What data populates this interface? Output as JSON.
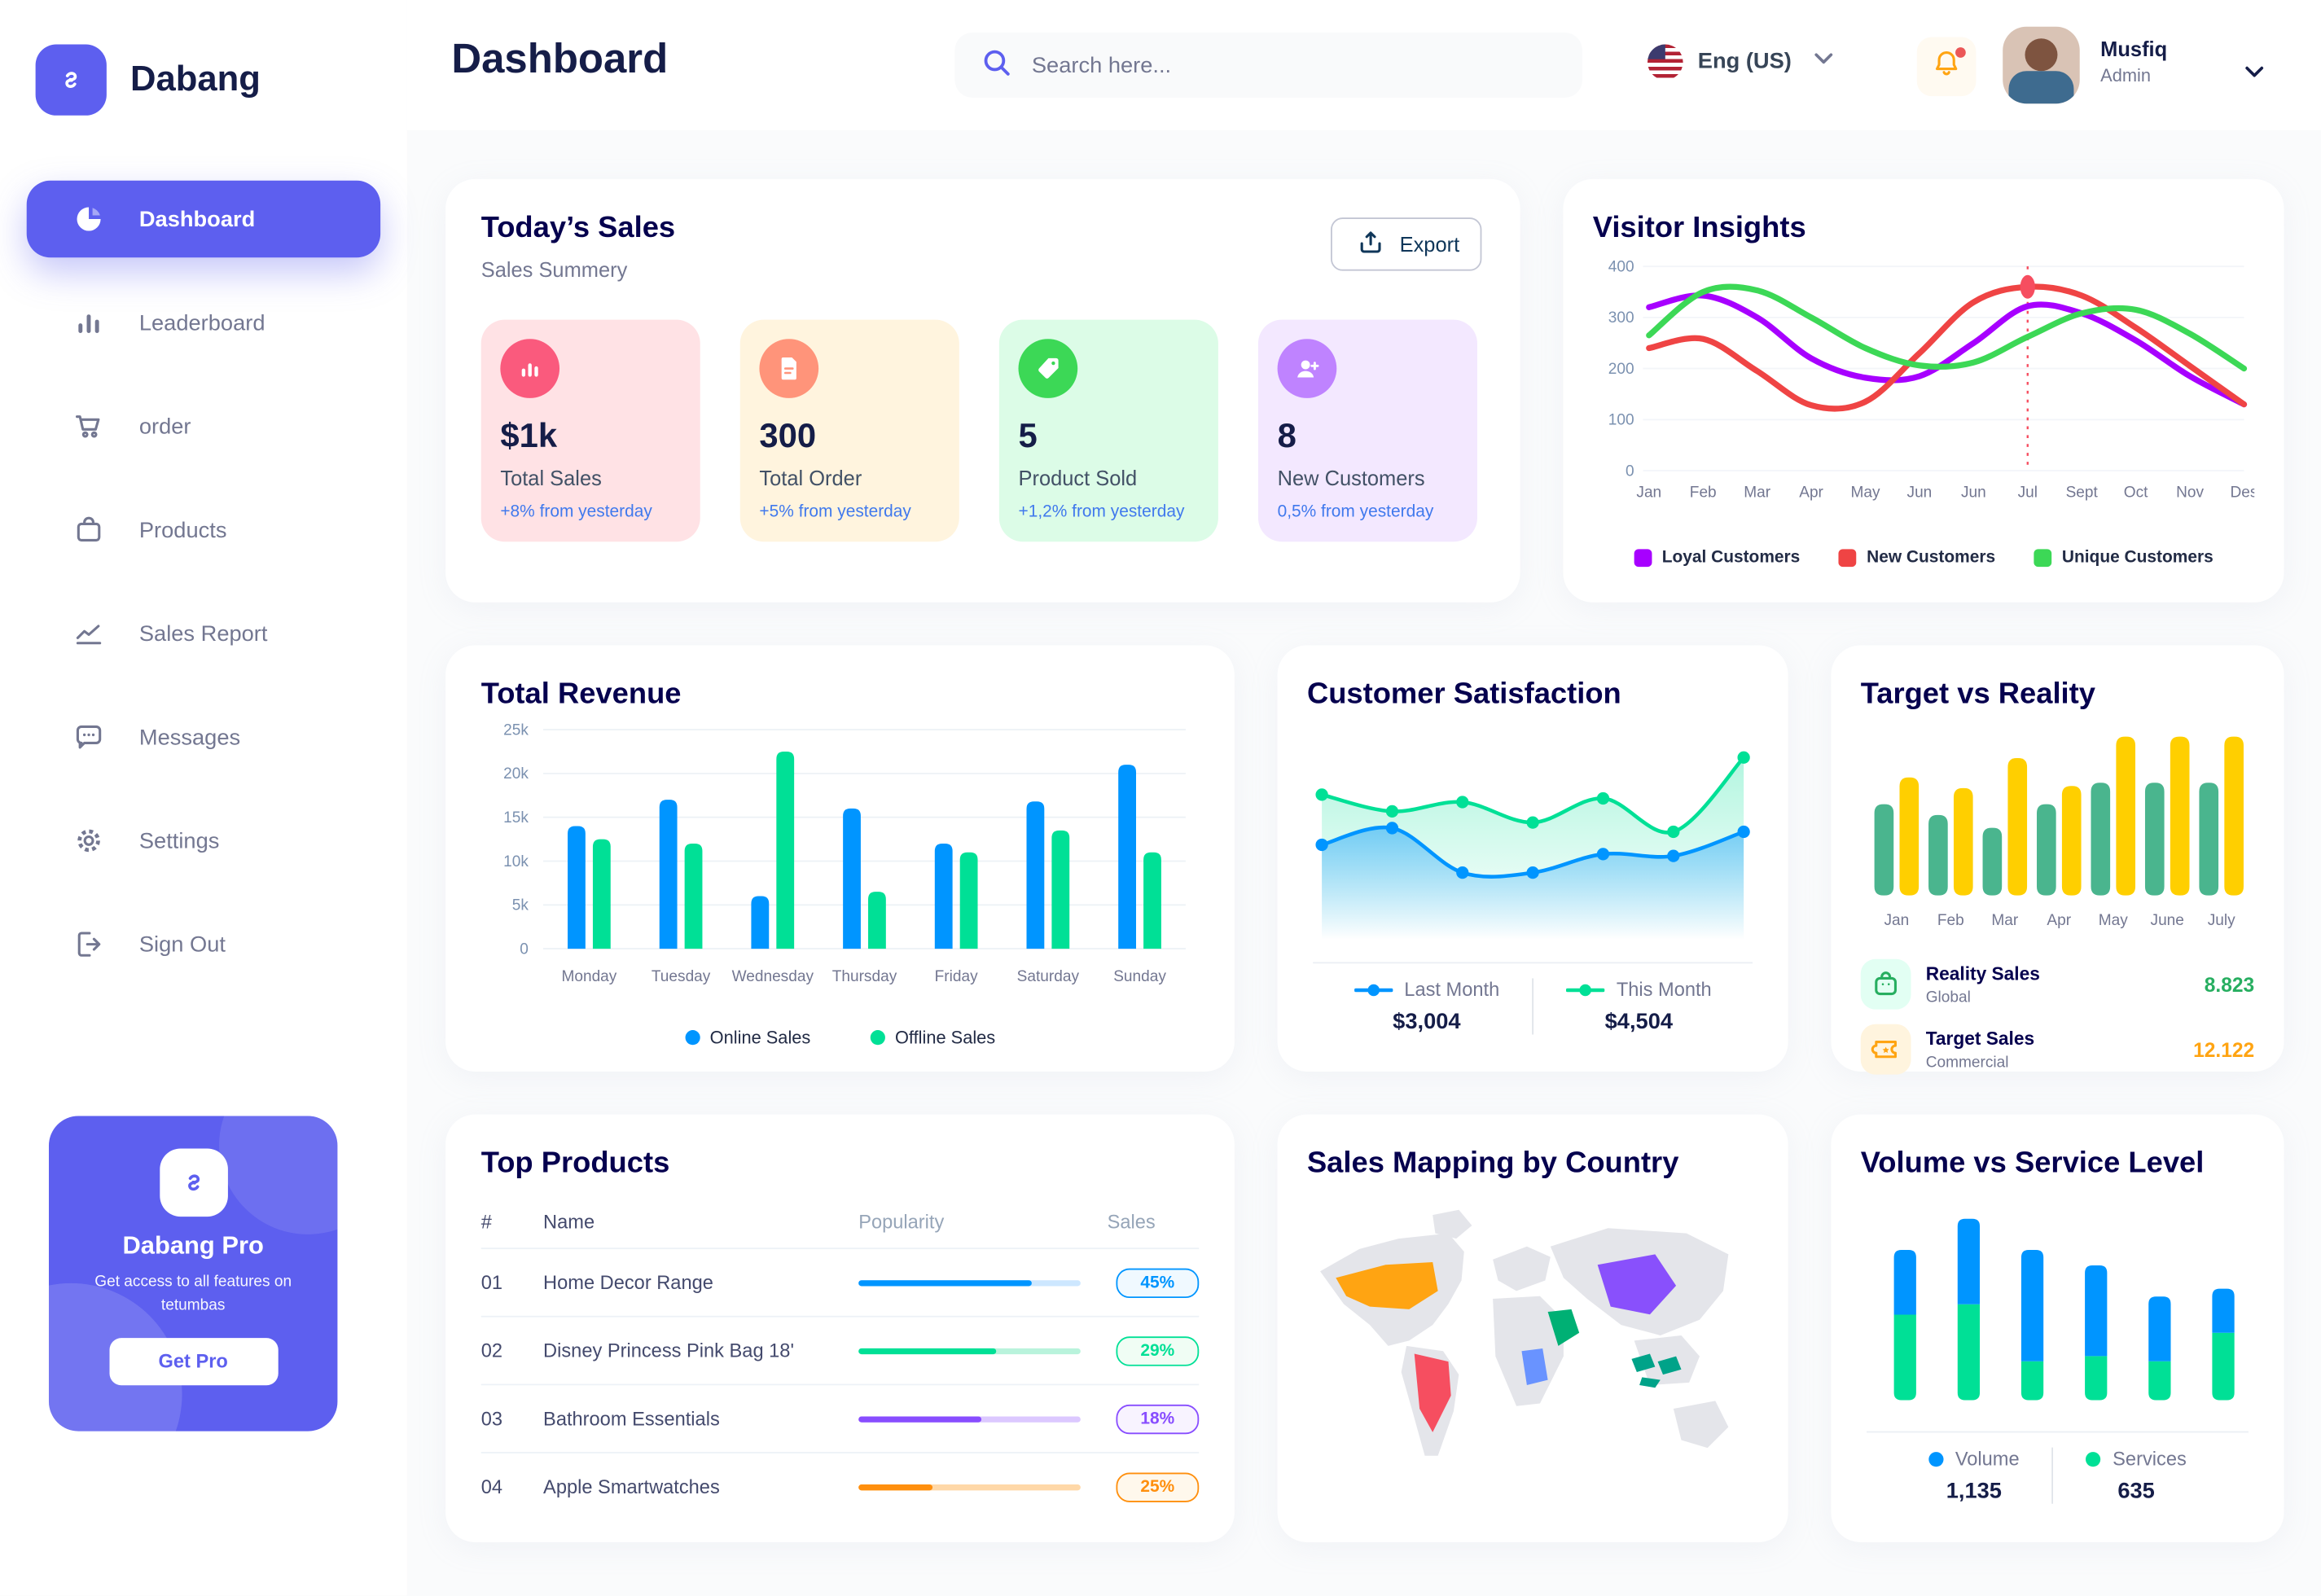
{
  "app": {
    "brand": "Dabang",
    "accent": "#5D5FEF",
    "page_bg": "#FAFBFC"
  },
  "header": {
    "title": "Dashboard",
    "search": {
      "placeholder": "Search here...",
      "icon": "search-icon"
    },
    "language": {
      "label": "Eng (US)",
      "flag": "us-flag"
    },
    "notifications": {
      "icon": "bell-icon",
      "has_unread": true
    },
    "user": {
      "name": "Musfiq",
      "role": "Admin"
    }
  },
  "sidebar": {
    "items": [
      {
        "label": "Dashboard",
        "icon": "pie-chart",
        "active": true
      },
      {
        "label": "Leaderboard",
        "icon": "bar-chart",
        "active": false
      },
      {
        "label": "order",
        "icon": "cart",
        "active": false
      },
      {
        "label": "Products",
        "icon": "bag",
        "active": false
      },
      {
        "label": "Sales Report",
        "icon": "line-chart",
        "active": false
      },
      {
        "label": "Messages",
        "icon": "message",
        "active": false
      },
      {
        "label": "Settings",
        "icon": "gear",
        "active": false
      },
      {
        "label": "Sign Out",
        "icon": "sign-out",
        "active": false
      }
    ],
    "pro": {
      "title": "Dabang Pro",
      "subtitle": "Get access to all features on tetumbas",
      "button": "Get Pro"
    }
  },
  "today_sales": {
    "title": "Today’s Sales",
    "subtitle": "Sales Summery",
    "export_label": "Export",
    "cards": [
      {
        "value": "$1k",
        "label": "Total Sales",
        "delta": "+8% from yesterday",
        "bg": "#FFE2E5",
        "icon_bg": "#FA5A7D",
        "icon": "stat-bar-icon"
      },
      {
        "value": "300",
        "label": "Total Order",
        "delta": "+5% from yesterday",
        "bg": "#FFF4DE",
        "icon_bg": "#FF947A",
        "icon": "stat-file-icon"
      },
      {
        "value": "5",
        "label": "Product Sold",
        "delta": "+1,2% from yesterday",
        "bg": "#DCFCE7",
        "icon_bg": "#3CD856",
        "icon": "stat-tag-icon"
      },
      {
        "value": "8",
        "label": "New Customers",
        "delta": "0,5% from yesterday",
        "bg": "#F3E8FF",
        "icon_bg": "#BF83FF",
        "icon": "stat-user-icon"
      }
    ]
  },
  "top_products": {
    "title": "Top Products",
    "headers": [
      "#",
      "Name",
      "Popularity",
      "Sales"
    ],
    "rows": [
      {
        "num": "01",
        "name": "Home Decor Range",
        "popularity": 78,
        "sales": "45%",
        "color": "#0095FF",
        "track": "#CDE7FF",
        "badge_bg": "#F0F9FF"
      },
      {
        "num": "02",
        "name": "Disney Princess Pink Bag 18'",
        "popularity": 62,
        "sales": "29%",
        "color": "#00E096",
        "track": "#B9F3DC",
        "badge_bg": "#F0FDF4"
      },
      {
        "num": "03",
        "name": "Bathroom Essentials",
        "popularity": 55,
        "sales": "18%",
        "color": "#884DFF",
        "track": "#DCC8FF",
        "badge_bg": "#F8F3FF"
      },
      {
        "num": "04",
        "name": "Apple Smartwatches",
        "popularity": 33,
        "sales": "25%",
        "color": "#FF8F0D",
        "track": "#FFD8A8",
        "badge_bg": "#FFF8EC"
      }
    ]
  },
  "sales_mapping": {
    "title": "Sales Mapping by Country",
    "land_color": "#E4E5EA",
    "countries": [
      {
        "name": "United States",
        "color": "#FFA412"
      },
      {
        "name": "Brazil",
        "color": "#F64E60"
      },
      {
        "name": "Saudi Arabia",
        "color": "#00B074"
      },
      {
        "name": "DR Congo",
        "color": "#6993FF"
      },
      {
        "name": "China",
        "color": "#8950FC"
      },
      {
        "name": "Indonesia",
        "color": "#00A389"
      }
    ]
  },
  "chart_data": [
    {
      "id": "visitor-insights",
      "type": "line",
      "title": "Visitor Insights",
      "x": [
        "Jan",
        "Feb",
        "Mar",
        "Apr",
        "May",
        "Jun",
        "Jun",
        "Jul",
        "Sept",
        "Oct",
        "Nov",
        "Des"
      ],
      "yticks": [
        400,
        300,
        200,
        100,
        0
      ],
      "ylim": [
        0,
        400
      ],
      "grid": true,
      "legend_position": "bottom",
      "series": [
        {
          "name": "Loyal Customers",
          "color": "#A700FF",
          "values": [
            320,
            343,
            300,
            220,
            182,
            185,
            250,
            322,
            308,
            255,
            185,
            130
          ]
        },
        {
          "name": "New Customers",
          "color": "#EF4444",
          "values": [
            240,
            258,
            195,
            128,
            135,
            230,
            330,
            360,
            343,
            280,
            205,
            130
          ]
        },
        {
          "name": "Unique Customers",
          "color": "#3CD856",
          "values": [
            265,
            350,
            353,
            300,
            240,
            206,
            212,
            262,
            308,
            315,
            268,
            200
          ]
        }
      ],
      "highlight": {
        "series": "New Customers",
        "x": "Jul",
        "index": 7,
        "value": 360
      }
    },
    {
      "id": "total-revenue",
      "type": "bar",
      "title": "Total Revenue",
      "categories": [
        "Monday",
        "Tuesday",
        "Wednesday",
        "Thursday",
        "Friday",
        "Saturday",
        "Sunday"
      ],
      "yticks": [
        "25k",
        "20k",
        "15k",
        "10k",
        "5k",
        "0"
      ],
      "ylim": [
        0,
        25
      ],
      "unit": "k",
      "grid": true,
      "legend_position": "bottom",
      "series": [
        {
          "name": "Online Sales",
          "color": "#0095FF",
          "values": [
            14,
            17,
            6,
            16,
            12,
            16.8,
            21
          ]
        },
        {
          "name": "Offline Sales",
          "color": "#00E096",
          "values": [
            12.5,
            12,
            22.5,
            6.5,
            11,
            13.5,
            11
          ]
        }
      ]
    },
    {
      "id": "customer-satisfaction",
      "type": "area",
      "title": "Customer Satisfaction",
      "x": [
        1,
        2,
        3,
        4,
        5,
        6,
        7
      ],
      "ylim": [
        0,
        110
      ],
      "grid": false,
      "legend_position": "bottom",
      "series": [
        {
          "name": "Last Month",
          "color": "#0095FF",
          "total": "$3,004",
          "values": [
            48,
            57,
            33,
            33,
            43,
            42,
            55
          ]
        },
        {
          "name": "This Month",
          "color": "#00E096",
          "total": "$4,504",
          "values": [
            75,
            66,
            71,
            60,
            73,
            55,
            95
          ]
        }
      ]
    },
    {
      "id": "target-vs-reality",
      "type": "bar",
      "title": "Target vs Reality",
      "categories": [
        "Jan",
        "Feb",
        "Mar",
        "Apr",
        "May",
        "June",
        "July"
      ],
      "ylim": [
        0,
        16
      ],
      "grid": false,
      "legend_position": "bottom-list",
      "series": [
        {
          "name": "Reality Sales",
          "subtitle": "Global",
          "color": "#4AB58E",
          "icon_bg": "#E2FFF3",
          "value_color": "#27AE60",
          "total": "8.823",
          "values": [
            8.5,
            7.5,
            6.3,
            8.5,
            10.5,
            10.5,
            10.5
          ]
        },
        {
          "name": "Target Sales",
          "subtitle": "Commercial",
          "color": "#FFCF00",
          "icon_bg": "#FFF4DE",
          "value_color": "#FFA412",
          "total": "12.122",
          "values": [
            11,
            10,
            12.8,
            10.2,
            14.8,
            14.8,
            14.8
          ]
        }
      ]
    },
    {
      "id": "volume-vs-service",
      "type": "stacked-bar",
      "title": "Volume vs Service Level",
      "categories": [
        "1",
        "2",
        "3",
        "4",
        "5",
        "6"
      ],
      "ylim": [
        0,
        80
      ],
      "grid": false,
      "legend_position": "bottom",
      "series": [
        {
          "name": "Volume",
          "color": "#0095FF",
          "total": "1,135",
          "values": [
            25,
            33,
            43,
            35,
            25,
            17
          ]
        },
        {
          "name": "Services",
          "color": "#00E096",
          "total": "635",
          "values": [
            33,
            37,
            15,
            17,
            15,
            26
          ]
        }
      ]
    }
  ]
}
